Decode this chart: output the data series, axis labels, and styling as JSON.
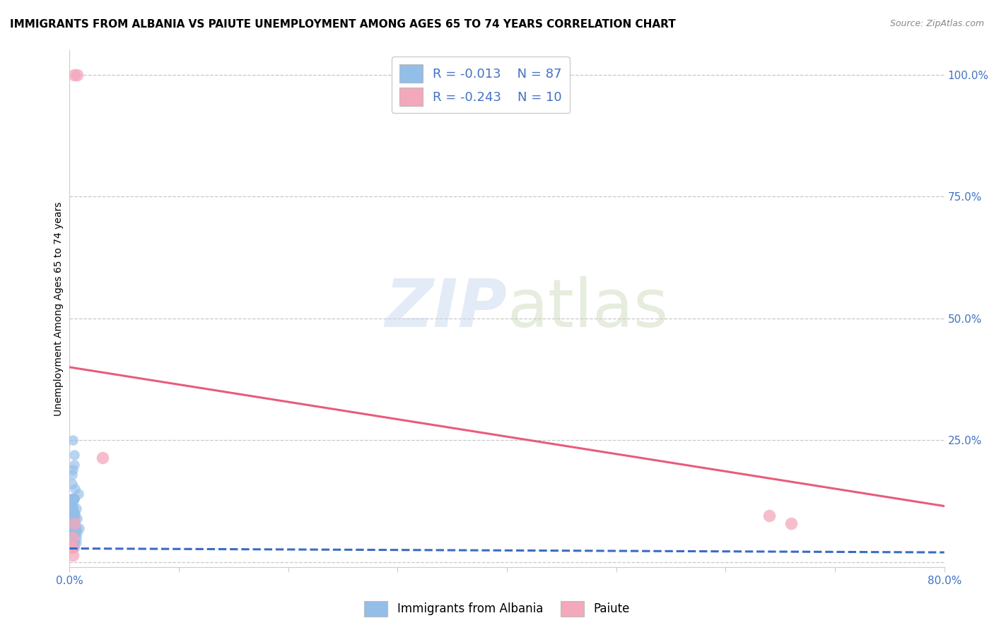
{
  "title": "IMMIGRANTS FROM ALBANIA VS PAIUTE UNEMPLOYMENT AMONG AGES 65 TO 74 YEARS CORRELATION CHART",
  "source": "Source: ZipAtlas.com",
  "ylabel": "Unemployment Among Ages 65 to 74 years",
  "xlim": [
    0.0,
    0.8
  ],
  "ylim": [
    -0.01,
    1.05
  ],
  "xticks": [
    0.0,
    0.1,
    0.2,
    0.3,
    0.4,
    0.5,
    0.6,
    0.7,
    0.8
  ],
  "xticklabels": [
    "0.0%",
    "",
    "",
    "",
    "",
    "",
    "",
    "",
    "80.0%"
  ],
  "yticks_right": [
    0.0,
    0.25,
    0.5,
    0.75,
    1.0
  ],
  "yticklabels_right": [
    "",
    "25.0%",
    "50.0%",
    "75.0%",
    "100.0%"
  ],
  "blue_scatter_x": [
    0.003,
    0.005,
    0.002,
    0.006,
    0.007,
    0.003,
    0.002,
    0.004,
    0.008,
    0.003,
    0.002,
    0.003,
    0.004,
    0.002,
    0.003,
    0.005,
    0.002,
    0.004,
    0.006,
    0.003,
    0.002,
    0.003,
    0.004,
    0.005,
    0.002,
    0.003,
    0.004,
    0.002,
    0.003,
    0.002,
    0.004,
    0.003,
    0.002,
    0.005,
    0.003,
    0.004,
    0.002,
    0.003,
    0.004,
    0.002,
    0.003,
    0.002,
    0.004,
    0.003,
    0.002,
    0.005,
    0.003,
    0.004,
    0.002,
    0.003,
    0.006,
    0.003,
    0.004,
    0.002,
    0.005,
    0.003,
    0.002,
    0.004,
    0.003,
    0.002,
    0.007,
    0.003,
    0.004,
    0.009,
    0.003,
    0.002,
    0.004,
    0.005,
    0.003,
    0.002,
    0.006,
    0.003,
    0.002,
    0.004,
    0.003,
    0.005,
    0.002,
    0.004,
    0.003,
    0.002,
    0.003,
    0.004,
    0.002,
    0.003,
    0.002,
    0.003,
    0.002
  ],
  "blue_scatter_y": [
    0.12,
    0.15,
    0.18,
    0.05,
    0.09,
    0.13,
    0.06,
    0.1,
    0.14,
    0.03,
    0.07,
    0.11,
    0.04,
    0.08,
    0.06,
    0.1,
    0.13,
    0.07,
    0.04,
    0.09,
    0.06,
    0.1,
    0.03,
    0.07,
    0.11,
    0.04,
    0.08,
    0.06,
    0.1,
    0.13,
    0.07,
    0.04,
    0.09,
    0.06,
    0.1,
    0.03,
    0.07,
    0.11,
    0.04,
    0.08,
    0.06,
    0.1,
    0.13,
    0.07,
    0.04,
    0.09,
    0.06,
    0.1,
    0.03,
    0.07,
    0.11,
    0.04,
    0.08,
    0.16,
    0.06,
    0.1,
    0.13,
    0.07,
    0.19,
    0.09,
    0.06,
    0.1,
    0.13,
    0.07,
    0.04,
    0.09,
    0.22,
    0.06,
    0.1,
    0.03,
    0.07,
    0.11,
    0.04,
    0.08,
    0.25,
    0.06,
    0.1,
    0.13,
    0.07,
    0.04,
    0.09,
    0.2,
    0.03,
    0.04,
    0.07,
    0.11,
    0.04
  ],
  "pink_scatter_x": [
    0.004,
    0.007,
    0.03,
    0.003,
    0.004,
    0.002,
    0.64,
    0.66,
    0.002,
    0.003
  ],
  "pink_scatter_y": [
    1.0,
    1.0,
    0.215,
    0.05,
    0.08,
    0.03,
    0.095,
    0.08,
    0.03,
    0.015
  ],
  "blue_line_x": [
    0.0,
    0.8
  ],
  "blue_line_y": [
    0.028,
    0.02
  ],
  "pink_line_x": [
    0.0,
    0.8
  ],
  "pink_line_y": [
    0.4,
    0.115
  ],
  "legend_blue_r": "R = -0.013",
  "legend_blue_n": "N = 87",
  "legend_pink_r": "R = -0.243",
  "legend_pink_n": "N = 10",
  "blue_color": "#92BEE8",
  "pink_color": "#F4A8BC",
  "blue_line_color": "#3B6BC4",
  "pink_line_color": "#E85C7A",
  "axis_color": "#4472C4",
  "grid_color": "#C8C8C8",
  "watermark_zip": "ZIP",
  "watermark_atlas": "atlas",
  "title_fontsize": 11,
  "label_fontsize": 10,
  "tick_fontsize": 11,
  "legend_fontsize": 13
}
